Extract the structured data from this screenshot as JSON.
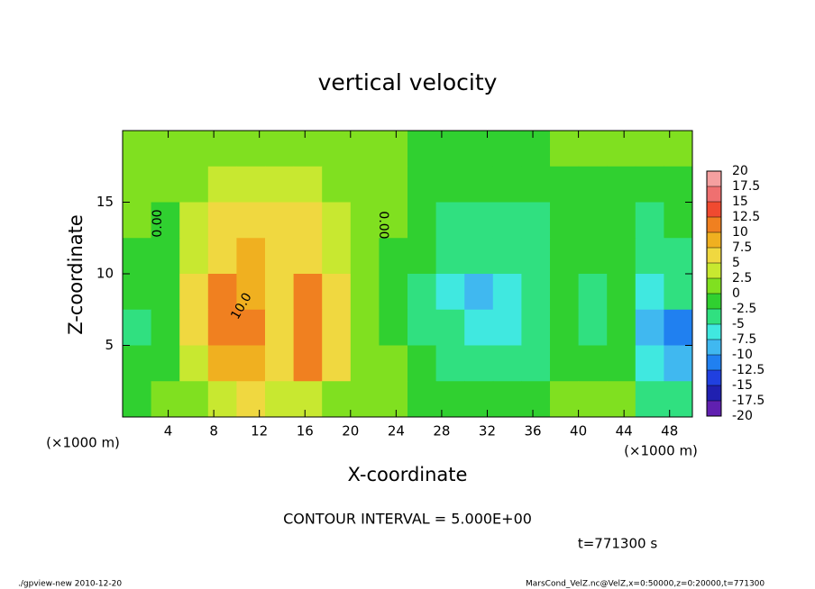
{
  "chart_data": {
    "type": "heatmap",
    "title": "vertical velocity",
    "x_label": "X-coordinate",
    "y_label": "Z-coordinate",
    "x_unit": "(×1000 m)",
    "xlim": [
      0,
      50
    ],
    "ylim": [
      0,
      20
    ],
    "xticks": [
      4,
      8,
      12,
      16,
      20,
      24,
      28,
      32,
      36,
      40,
      44,
      48
    ],
    "yticks": [
      5,
      10,
      15
    ],
    "z": [
      [
        1,
        0.5,
        1,
        1.5,
        2,
        2,
        2,
        1.5,
        1,
        0.5,
        -0.5,
        -1,
        -1,
        -1,
        -0.5,
        0,
        0.5,
        0.5,
        0,
        0
      ],
      [
        0.5,
        0,
        2,
        3,
        3.5,
        3.5,
        3,
        2,
        1,
        0,
        -1,
        -1.5,
        -2,
        -2,
        -1.5,
        -1,
        -0.5,
        -0.5,
        -1,
        -1
      ],
      [
        0,
        -0.5,
        3,
        5.5,
        6.5,
        6,
        5,
        3,
        1,
        0,
        -1.5,
        -3,
        -4,
        -4,
        -3,
        -2,
        -1.5,
        -1.5,
        -3,
        -2.5
      ],
      [
        -1,
        -1,
        4,
        7,
        8.5,
        6.5,
        6,
        4,
        1.5,
        -0.5,
        -2,
        -4,
        -5,
        -4.5,
        -3,
        -2,
        -1.5,
        -2,
        -4,
        -3.5
      ],
      [
        -2,
        -1.5,
        5,
        10,
        9,
        7,
        10,
        5,
        1,
        -1,
        -3,
        -6,
        -8,
        -6,
        -3.5,
        -2,
        -4,
        -2.5,
        -6,
        -5
      ],
      [
        -3,
        -2,
        6,
        10.5,
        11,
        7,
        11,
        7,
        1.5,
        -1,
        -3,
        -5,
        -6,
        -5.5,
        -4,
        -2,
        -3,
        -2,
        -8,
        -12
      ],
      [
        -2.5,
        -1,
        4,
        9,
        9,
        6,
        10,
        6,
        1,
        0,
        -2,
        -3,
        -4,
        -5,
        -3,
        -1,
        -1,
        -1,
        -6,
        -8
      ],
      [
        -1,
        0.5,
        2,
        4,
        5,
        4,
        4,
        2,
        0.5,
        0.5,
        -0.5,
        -1,
        -1.5,
        -2,
        -1,
        0.5,
        0.5,
        0,
        -3,
        -4
      ]
    ],
    "colorbar": {
      "levels": [
        20,
        17.5,
        15,
        12.5,
        10,
        7.5,
        5,
        2.5,
        0,
        -2.5,
        -5,
        -7.5,
        -10,
        -12.5,
        -15,
        -17.5,
        -20
      ],
      "colors": [
        "#f5a0a0",
        "#ef7070",
        "#f04a30",
        "#f08020",
        "#f0b020",
        "#f0d840",
        "#c8e830",
        "#80e020",
        "#30d030",
        "#30e080",
        "#40e8e0",
        "#40b8f0",
        "#2080f0",
        "#2040e0",
        "#2020b0",
        "#6020b0"
      ]
    },
    "contour_labels": [
      "0.00",
      "0.00",
      "10.0"
    ],
    "contour_interval": "CONTOUR INTERVAL = 5.000E+00",
    "time_label": "t=771300 s",
    "footer_left": "./gpview-new  2010-12-20",
    "footer_right": "MarsCond_VelZ.nc@VelZ,x=0:50000,z=0:20000,t=771300"
  }
}
